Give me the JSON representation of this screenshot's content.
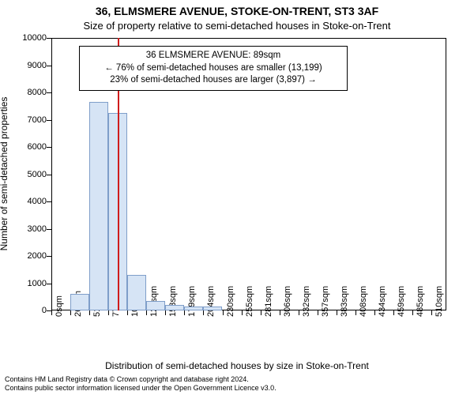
{
  "header": {
    "title": "36, ELMSMERE AVENUE, STOKE-ON-TRENT, ST3 3AF",
    "subtitle": "Size of property relative to semi-detached houses in Stoke-on-Trent"
  },
  "axis": {
    "ylabel": "Number of semi-detached properties",
    "xlabel": "Distribution of semi-detached houses by size in Stoke-on-Trent",
    "label_fontsize": 12
  },
  "chart": {
    "type": "histogram",
    "background_color": "#ffffff",
    "border_color": "#000000",
    "bar_fill": "#d6e4f5",
    "bar_stroke": "#7f9ec9",
    "bar_stroke_width": 1,
    "ylim": [
      0,
      10000
    ],
    "ytick_step": 1000,
    "xlim": [
      0,
      530
    ],
    "xtick_start": 0,
    "xtick_step": 25.5,
    "xtick_count": 21,
    "xtick_labels": [
      "0sqm",
      "26sqm",
      "51sqm",
      "77sqm",
      "102sqm",
      "128sqm",
      "153sqm",
      "179sqm",
      "204sqm",
      "230sqm",
      "255sqm",
      "281sqm",
      "306sqm",
      "332sqm",
      "357sqm",
      "383sqm",
      "408sqm",
      "434sqm",
      "459sqm",
      "485sqm",
      "510sqm"
    ],
    "bars": [
      {
        "x": 25.5,
        "w": 25.5,
        "value": 600
      },
      {
        "x": 51.0,
        "w": 25.5,
        "value": 7650
      },
      {
        "x": 76.5,
        "w": 25.5,
        "value": 7250
      },
      {
        "x": 102.0,
        "w": 25.5,
        "value": 1300
      },
      {
        "x": 127.5,
        "w": 25.5,
        "value": 340
      },
      {
        "x": 153.0,
        "w": 25.5,
        "value": 190
      },
      {
        "x": 178.5,
        "w": 25.5,
        "value": 140
      },
      {
        "x": 204.0,
        "w": 25.5,
        "value": 140
      }
    ],
    "marker": {
      "x": 89,
      "color": "#d01c1c",
      "width": 2
    }
  },
  "annotation": {
    "line1": "36 ELMSMERE AVENUE: 89sqm",
    "line2": "← 76% of semi-detached houses are smaller (13,199)",
    "line3": "23% of semi-detached houses are larger (3,897) →",
    "border_color": "#000000",
    "background": "#ffffff",
    "fontsize": 11.5
  },
  "footer": {
    "line1": "Contains HM Land Registry data © Crown copyright and database right 2024.",
    "line2": "Contains public sector information licensed under the Open Government Licence v3.0.",
    "fontsize": 9
  }
}
